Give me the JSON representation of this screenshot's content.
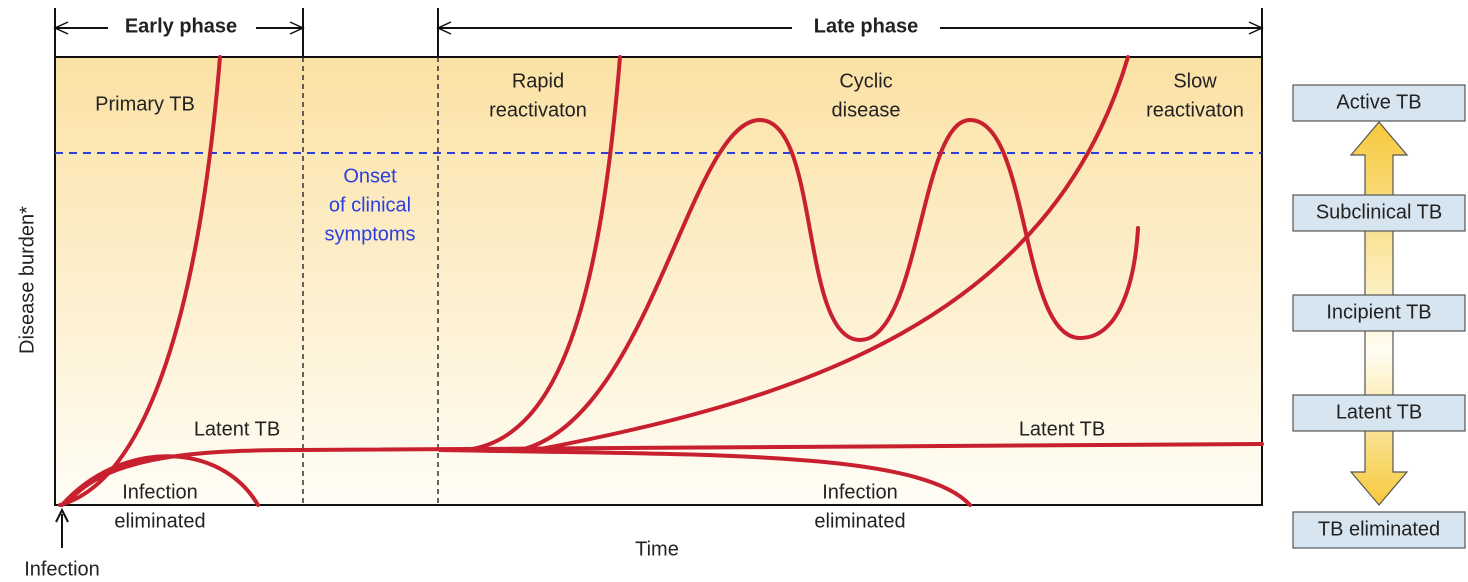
{
  "header": {
    "early_phase": "Early phase",
    "late_phase": "Late phase"
  },
  "axes": {
    "y_label": "Disease burden*",
    "x_label": "Time",
    "origin_label": "Infection"
  },
  "plot_labels": {
    "primary": [
      "Primary TB"
    ],
    "rapid": [
      "Rapid",
      "reactivaton"
    ],
    "cyclic": [
      "Cyclic",
      "disease"
    ],
    "slow": [
      "Slow",
      "reactivaton"
    ],
    "onset": [
      "Onset",
      "of clinical",
      "symptoms"
    ],
    "latent_left": [
      "Latent TB"
    ],
    "latent_right": [
      "Latent TB"
    ],
    "eliminated_left": [
      "Infection",
      "eliminated"
    ],
    "eliminated_right": [
      "Infection",
      "eliminated"
    ]
  },
  "stages": [
    "Active TB",
    "Subclinical TB",
    "Incipient TB",
    "Latent TB",
    "TB eliminated"
  ]
}
